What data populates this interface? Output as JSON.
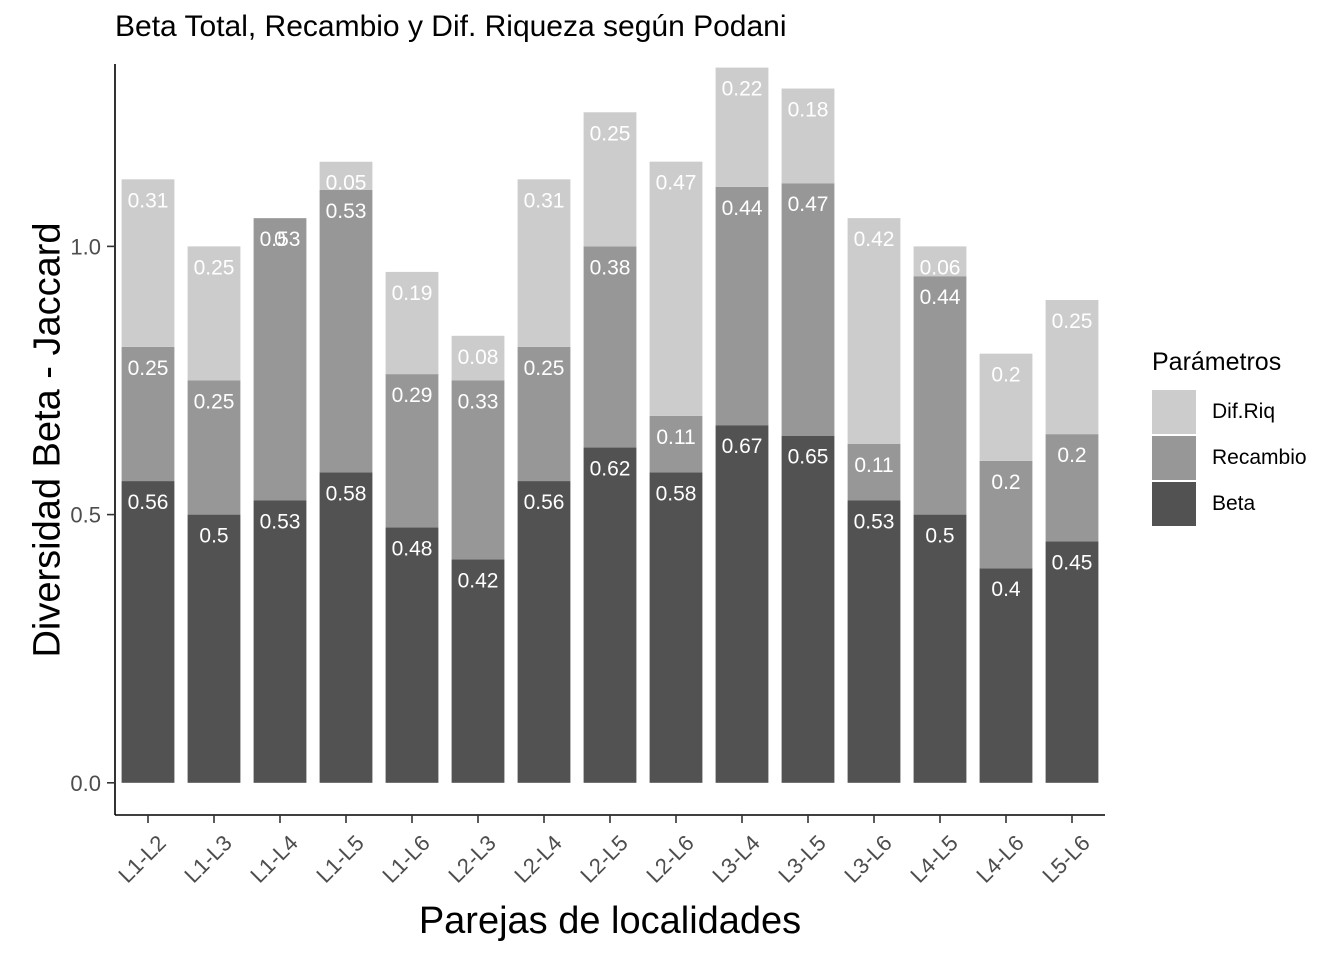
{
  "chart_data": {
    "type": "bar",
    "stacked": true,
    "title": "Beta Total, Recambio y Dif. Riqueza según Podani",
    "xlabel": "Parejas de localidades",
    "ylabel": "Diversidad Beta - Jaccard",
    "ylim": [
      -0.06,
      1.34
    ],
    "yticks": [
      0.0,
      0.5,
      1.0
    ],
    "ytick_labels": [
      "0.0",
      "0.5",
      "1.0"
    ],
    "grid": false,
    "legend": {
      "title": "Parámetros",
      "placement": "right"
    },
    "categories": [
      "L1-L2",
      "L1-L3",
      "L1-L4",
      "L1-L5",
      "L1-L6",
      "L2-L3",
      "L2-L4",
      "L2-L5",
      "L2-L6",
      "L3-L4",
      "L3-L5",
      "L3-L6",
      "L4-L5",
      "L4-L6",
      "L5-L6"
    ],
    "series": [
      {
        "name": "Beta",
        "color": "#525252",
        "values": [
          0.5625,
          0.5,
          0.5263,
          0.5789,
          0.4762,
          0.4167,
          0.5625,
          0.625,
          0.5789,
          0.6667,
          0.6471,
          0.5263,
          0.5,
          0.4,
          0.45
        ],
        "labels": [
          "0.56",
          "0.5",
          "0.53",
          "0.58",
          "0.48",
          "0.42",
          "0.56",
          "0.62",
          "0.58",
          "0.67",
          "0.65",
          "0.53",
          "0.5",
          "0.4",
          "0.45"
        ]
      },
      {
        "name": "Recambio",
        "color": "#979797",
        "values": [
          0.25,
          0.25,
          0.5263,
          0.5263,
          0.2857,
          0.3333,
          0.25,
          0.375,
          0.1053,
          0.4444,
          0.4706,
          0.1053,
          0.4444,
          0.2,
          0.2
        ],
        "labels": [
          "0.25",
          "0.25",
          "0.53",
          "0.53",
          "0.29",
          "0.33",
          "0.25",
          "0.38",
          "0.11",
          "0.44",
          "0.47",
          "0.11",
          "0.44",
          "0.2",
          "0.2"
        ]
      },
      {
        "name": "Dif.Riq",
        "color": "#cccccc",
        "values": [
          0.3125,
          0.25,
          0.0,
          0.0526,
          0.1905,
          0.0833,
          0.3125,
          0.25,
          0.4737,
          0.2222,
          0.1765,
          0.4211,
          0.0556,
          0.2,
          0.25
        ],
        "labels": [
          "0.31",
          "0.25",
          "0",
          "0.05",
          "0.19",
          "0.08",
          "0.31",
          "0.25",
          "0.47",
          "0.22",
          "0.18",
          "0.42",
          "0.06",
          "0.2",
          "0.25"
        ]
      }
    ]
  }
}
